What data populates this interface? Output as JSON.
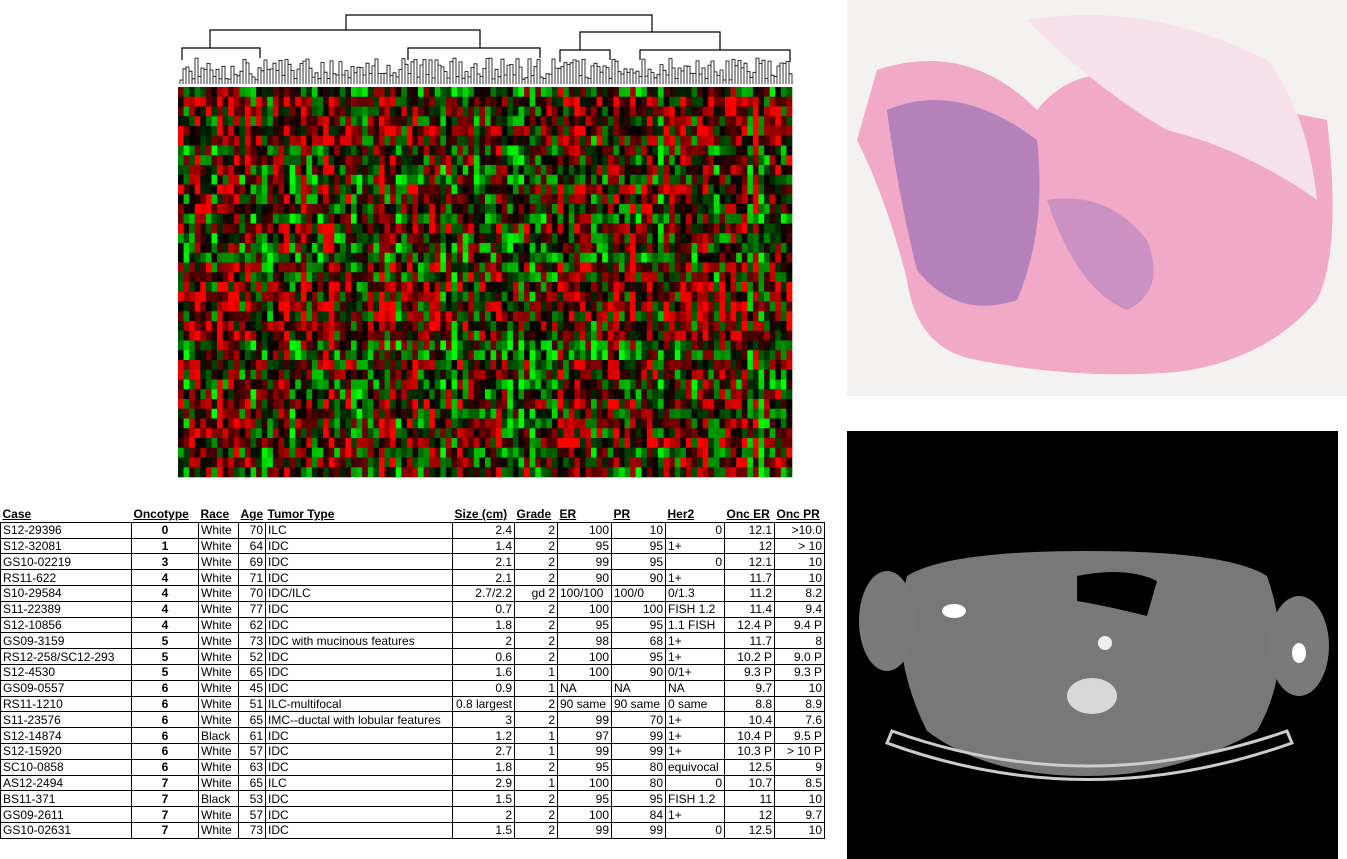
{
  "table": {
    "header": [
      "Case",
      "Oncotype",
      "Race",
      "Age",
      "Tumor Type",
      "Size (cm)",
      "Grade",
      "ER",
      "PR",
      "Her2",
      "Onc ER",
      "Onc PR"
    ],
    "rows": [
      [
        "S12-29396",
        "0",
        "White",
        "70",
        "ILC",
        "2.4",
        "2",
        "100",
        "10",
        "0",
        "12.1",
        ">10.0"
      ],
      [
        "S12-32081",
        "1",
        "White",
        "64",
        "IDC",
        "1.4",
        "2",
        "95",
        "95",
        "1+",
        "12",
        "> 10"
      ],
      [
        "GS10-02219",
        "3",
        "White",
        "69",
        "IDC",
        "2.1",
        "2",
        "99",
        "95",
        "0",
        "12.1",
        "10"
      ],
      [
        "RS11-622",
        "4",
        "White",
        "71",
        "IDC",
        "2.1",
        "2",
        "90",
        "90",
        "1+",
        "11.7",
        "10"
      ],
      [
        "S10-29584",
        "4",
        "White",
        "70",
        "IDC/ILC",
        "2.7/2.2",
        "gd 2",
        "100/100",
        "100/0",
        "0/1.3",
        "11.2",
        "8.2"
      ],
      [
        "S11-22389",
        "4",
        "White",
        "77",
        "IDC",
        "0.7",
        "2",
        "100",
        "100",
        "FISH 1.2",
        "11.4",
        "9.4"
      ],
      [
        "S12-10856",
        "4",
        "White",
        "62",
        "IDC",
        "1.8",
        "2",
        "95",
        "95",
        "1.1 FISH",
        "12.4 P",
        "9.4 P"
      ],
      [
        "GS09-3159",
        "5",
        "White",
        "73",
        "IDC with mucinous features",
        "2",
        "2",
        "98",
        "68",
        "1+",
        "11.7",
        "8"
      ],
      [
        "RS12-258/SC12-293",
        "5",
        "White",
        "52",
        "IDC",
        "0.6",
        "2",
        "100",
        "95",
        "1+",
        "10.2 P",
        "9.0 P"
      ],
      [
        "S12-4530",
        "5",
        "White",
        "65",
        "IDC",
        "1.6",
        "1",
        "100",
        "90",
        "0/1+",
        "9.3 P",
        "9.3 P"
      ],
      [
        "GS09-0557",
        "6",
        "White",
        "45",
        "IDC",
        "0.9",
        "1",
        "NA",
        "NA",
        "NA",
        "9.7",
        "10"
      ],
      [
        "RS11-1210",
        "6",
        "White",
        "51",
        "ILC-multifocal",
        "0.8 largest",
        "2",
        "90 same",
        "90 same",
        "0 same",
        "8.8",
        "8.9"
      ],
      [
        "S11-23576",
        "6",
        "White",
        "65",
        "IMC--ductal with lobular features",
        "3",
        "2",
        "99",
        "70",
        "1+",
        "10.4",
        "7.6"
      ],
      [
        "S12-14874",
        "6",
        "Black",
        "61",
        "IDC",
        "1.2",
        "1",
        "97",
        "99",
        "1+",
        "10.4 P",
        "9.5 P"
      ],
      [
        "S12-15920",
        "6",
        "White",
        "57",
        "IDC",
        "2.7",
        "1",
        "99",
        "99",
        "1+",
        "10.3 P",
        "> 10 P"
      ],
      [
        "SC10-0858",
        "6",
        "White",
        "63",
        "IDC",
        "1.8",
        "2",
        "95",
        "80",
        "equivocal",
        "12.5",
        "9"
      ],
      [
        "AS12-2494",
        "7",
        "White",
        "65",
        "ILC",
        "2.9",
        "1",
        "100",
        "80",
        "0",
        "10.7",
        "8.5"
      ],
      [
        "BS11-371",
        "7",
        "Black",
        "53",
        "IDC",
        "1.5",
        "2",
        "95",
        "95",
        "FISH 1.2",
        "11",
        "10"
      ],
      [
        "GS09-2611",
        "7",
        "White",
        "57",
        "IDC",
        "2",
        "2",
        "100",
        "84",
        "1+",
        "12",
        "9.7"
      ],
      [
        "GS10-02631",
        "7",
        "White",
        "73",
        "IDC",
        "1.5",
        "2",
        "99",
        "99",
        "0",
        "12.5",
        "10"
      ]
    ]
  }
}
